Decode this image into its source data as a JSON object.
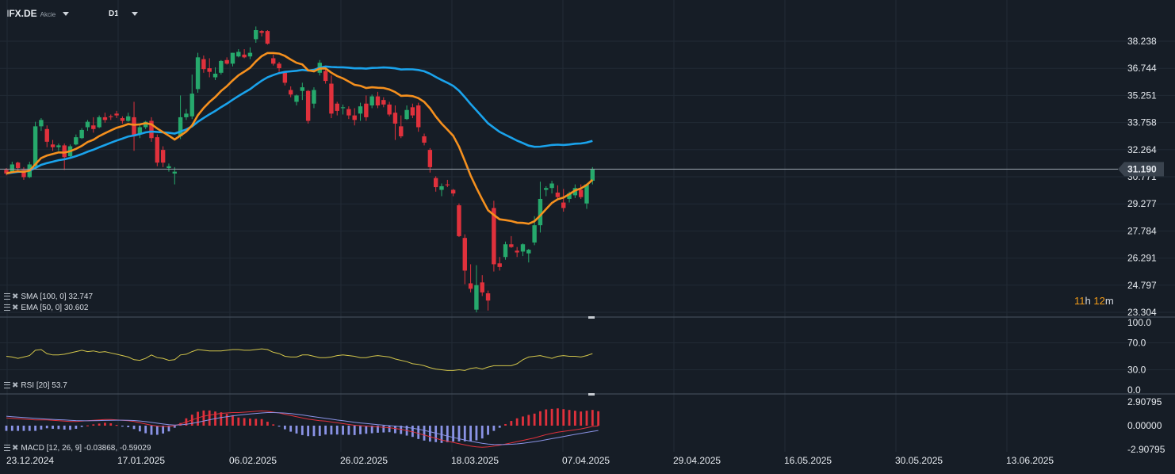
{
  "header": {
    "symbol": "IFX.DE",
    "type": "Akcie",
    "timeframe": "D1"
  },
  "legend": {
    "sma": "SMA [100, 0] 32.747",
    "ema": "EMA [50, 0] 30.602",
    "rsi": "RSI [20] 53.7",
    "macd": "MACD [12, 26, 9] -0.03868, -0.59029"
  },
  "timer": {
    "hours": "11",
    "h": "h",
    "minutes": "12",
    "m": "m"
  },
  "colors": {
    "bg": "#161d26",
    "up": "#26a96c",
    "down": "#e0313c",
    "sma": "#1aa3ec",
    "ema": "#f5901e",
    "rsi": "#d2c54a",
    "grid": "#212a35"
  },
  "chart_data": [
    {
      "type": "candlestick",
      "title": "IFX.DE",
      "ylim": [
        23.304,
        38.238
      ],
      "y_ticks": [
        "38.238",
        "36.744",
        "35.251",
        "33.758",
        "32.264",
        "30.771",
        "29.277",
        "27.784",
        "26.291",
        "24.797",
        "23.304"
      ],
      "x_ticks": [
        "23.12.2024",
        "17.01.2025",
        "06.02.2025",
        "26.02.2025",
        "18.03.2025",
        "07.04.2025",
        "29.04.2025",
        "16.05.2025",
        "30.05.2025",
        "13.06.2025"
      ],
      "last_price": "31.190",
      "series": [
        {
          "name": "SMA [100, 0]",
          "last": 32.747
        },
        {
          "name": "EMA [50, 0]",
          "last": 30.602
        }
      ],
      "candles_ohlc": [
        [
          31.15,
          31.25,
          30.85,
          30.95
        ],
        [
          31.05,
          31.6,
          30.95,
          31.45
        ],
        [
          31.55,
          31.6,
          31.1,
          31.25
        ],
        [
          31.15,
          31.3,
          30.6,
          30.75
        ],
        [
          30.75,
          31.6,
          30.7,
          31.45
        ],
        [
          31.35,
          33.8,
          31.3,
          33.55
        ],
        [
          33.55,
          34.0,
          33.3,
          33.9
        ],
        [
          33.4,
          33.6,
          32.4,
          32.7
        ],
        [
          32.55,
          32.8,
          32.2,
          32.4
        ],
        [
          32.4,
          32.6,
          32.2,
          32.5
        ],
        [
          32.5,
          32.6,
          31.15,
          31.85
        ],
        [
          31.9,
          32.55,
          31.85,
          32.45
        ],
        [
          32.55,
          33.1,
          32.5,
          32.95
        ],
        [
          32.9,
          33.45,
          32.85,
          33.35
        ],
        [
          33.5,
          33.9,
          33.3,
          33.8
        ],
        [
          33.6,
          34.05,
          33.2,
          33.4
        ],
        [
          33.5,
          34.15,
          33.45,
          34.05
        ],
        [
          34.05,
          34.3,
          33.75,
          33.9
        ],
        [
          34.1,
          34.2,
          33.9,
          34.05
        ],
        [
          34.25,
          34.4,
          34.0,
          34.15
        ],
        [
          34.0,
          34.1,
          33.7,
          33.85
        ],
        [
          33.85,
          34.3,
          33.8,
          34.1
        ],
        [
          34.05,
          34.9,
          32.2,
          33.0
        ],
        [
          33.15,
          33.6,
          32.9,
          33.5
        ],
        [
          33.5,
          33.85,
          33.4,
          33.8
        ],
        [
          33.85,
          34.05,
          32.7,
          32.9
        ],
        [
          32.95,
          33.1,
          31.35,
          31.55
        ],
        [
          32.25,
          32.45,
          31.3,
          31.55
        ],
        [
          31.25,
          31.5,
          31.05,
          31.35
        ],
        [
          30.95,
          31.3,
          30.35,
          31.05
        ],
        [
          33.0,
          35.25,
          32.85,
          34.05
        ],
        [
          34.05,
          34.5,
          33.9,
          34.25
        ],
        [
          34.1,
          36.4,
          33.95,
          35.35
        ],
        [
          35.6,
          37.6,
          35.4,
          37.35
        ],
        [
          37.25,
          37.45,
          36.5,
          36.7
        ],
        [
          36.75,
          37.3,
          36.25,
          36.55
        ],
        [
          36.25,
          36.8,
          36.1,
          36.45
        ],
        [
          36.5,
          37.2,
          36.4,
          37.15
        ],
        [
          37.2,
          37.35,
          36.95,
          37.0
        ],
        [
          37.0,
          37.6,
          36.85,
          37.6
        ],
        [
          37.4,
          37.8,
          37.35,
          37.65
        ],
        [
          37.5,
          37.8,
          37.3,
          37.35
        ],
        [
          37.4,
          37.9,
          37.25,
          37.6
        ],
        [
          38.35,
          39.05,
          38.15,
          38.85
        ],
        [
          38.8,
          38.85,
          38.5,
          38.7
        ],
        [
          38.8,
          38.85,
          38.05,
          38.1
        ],
        [
          37.3,
          37.5,
          36.9,
          37.0
        ],
        [
          37.0,
          37.1,
          36.55,
          36.75
        ],
        [
          36.5,
          36.55,
          35.8,
          35.95
        ],
        [
          35.55,
          35.75,
          35.15,
          35.3
        ],
        [
          34.9,
          35.3,
          34.7,
          35.25
        ],
        [
          35.5,
          35.95,
          35.0,
          35.7
        ],
        [
          35.5,
          35.55,
          33.7,
          33.85
        ],
        [
          34.8,
          35.7,
          34.55,
          35.55
        ],
        [
          36.5,
          37.2,
          36.35,
          37.05
        ],
        [
          36.6,
          36.85,
          35.9,
          36.05
        ],
        [
          35.9,
          36.35,
          34.0,
          34.25
        ],
        [
          34.8,
          34.9,
          34.15,
          34.4
        ],
        [
          34.55,
          34.75,
          34.2,
          34.6
        ],
        [
          34.5,
          34.65,
          33.95,
          34.15
        ],
        [
          34.15,
          34.55,
          33.6,
          33.9
        ],
        [
          34.25,
          34.85,
          33.85,
          34.65
        ],
        [
          34.8,
          35.25,
          33.85,
          34.05
        ],
        [
          34.7,
          35.3,
          34.55,
          35.2
        ],
        [
          35.2,
          35.45,
          34.55,
          34.7
        ],
        [
          35.0,
          35.15,
          34.6,
          34.75
        ],
        [
          34.75,
          34.9,
          34.1,
          34.2
        ],
        [
          34.3,
          34.7,
          32.8,
          33.7
        ],
        [
          33.55,
          34.15,
          32.9,
          33.0
        ],
        [
          33.95,
          34.7,
          33.9,
          34.45
        ],
        [
          34.6,
          34.8,
          34.0,
          34.15
        ],
        [
          34.7,
          34.85,
          33.25,
          33.5
        ],
        [
          33.0,
          33.15,
          32.5,
          32.65
        ],
        [
          32.25,
          32.35,
          31.0,
          31.3
        ],
        [
          30.7,
          30.8,
          29.95,
          30.2
        ],
        [
          30.05,
          30.4,
          29.7,
          30.25
        ],
        [
          30.35,
          30.6,
          30.2,
          30.3
        ],
        [
          30.05,
          30.1,
          29.7,
          29.85
        ],
        [
          29.2,
          29.3,
          27.45,
          27.5
        ],
        [
          27.4,
          27.6,
          24.85,
          25.6
        ],
        [
          24.9,
          25.95,
          24.4,
          24.6
        ],
        [
          23.45,
          25.9,
          23.3,
          24.8
        ],
        [
          24.95,
          25.35,
          24.2,
          24.4
        ],
        [
          24.35,
          24.5,
          23.4,
          23.95
        ],
        [
          29.05,
          29.45,
          25.55,
          25.95
        ],
        [
          26.0,
          26.35,
          25.6,
          25.8
        ],
        [
          26.35,
          27.2,
          26.2,
          27.05
        ],
        [
          27.05,
          27.5,
          26.85,
          26.9
        ],
        [
          26.7,
          26.9,
          26.35,
          26.6
        ],
        [
          26.65,
          27.1,
          26.4,
          27.05
        ],
        [
          26.55,
          26.8,
          26.05,
          26.75
        ],
        [
          27.15,
          28.6,
          27.0,
          28.1
        ],
        [
          28.1,
          30.5,
          27.7,
          29.55
        ],
        [
          30.05,
          30.25,
          29.7,
          30.15
        ],
        [
          30.15,
          30.55,
          29.85,
          30.4
        ],
        [
          29.9,
          30.3,
          29.55,
          29.65
        ],
        [
          29.35,
          30.1,
          28.85,
          29.05
        ],
        [
          29.55,
          29.95,
          29.35,
          29.85
        ],
        [
          29.75,
          30.35,
          29.6,
          30.15
        ],
        [
          30.05,
          30.35,
          29.55,
          29.65
        ],
        [
          29.3,
          30.4,
          29.0,
          30.35
        ],
        [
          30.55,
          31.3,
          30.35,
          31.19
        ]
      ]
    },
    {
      "type": "line",
      "title": "RSI [20]",
      "ylim": [
        0,
        100
      ],
      "y_ticks": [
        "100.0",
        "70.0",
        "30.0",
        "0.0"
      ],
      "last": 53.7,
      "series": [
        {
          "name": "RSI [20]",
          "values": [
            50,
            49,
            47,
            49,
            51,
            59,
            60,
            54,
            52,
            52,
            53,
            55,
            57,
            59,
            57,
            58,
            56,
            57,
            55,
            53,
            51,
            49,
            45,
            44,
            47,
            52,
            48,
            47,
            44,
            45,
            52,
            53,
            57,
            60,
            59,
            58,
            58,
            58,
            59,
            60,
            60,
            59,
            59,
            60,
            61,
            60,
            56,
            54,
            50,
            49,
            49,
            52,
            52,
            50,
            48,
            48,
            49,
            51,
            52,
            51,
            50,
            48,
            48,
            50,
            51,
            50,
            49,
            46,
            44,
            42,
            39,
            38,
            36,
            33,
            31,
            30,
            29,
            29,
            30,
            29,
            32,
            33,
            31,
            34,
            36,
            36,
            36,
            36,
            39,
            45,
            49,
            50,
            51,
            49,
            47,
            50,
            51,
            50,
            50,
            49,
            51,
            54
          ]
        }
      ]
    },
    {
      "type": "bar",
      "title": "MACD [12, 26, 9]",
      "ylim": [
        -2.90795,
        2.90795
      ],
      "y_ticks": [
        "2.90795",
        "0.00000",
        "-2.90795"
      ],
      "values_last": [
        -0.03868,
        -0.59029
      ],
      "series": [
        {
          "name": "MACD",
          "values": [
            0.95,
            0.9,
            0.85,
            0.8,
            0.75,
            0.7,
            0.7,
            0.7,
            0.65,
            0.6,
            0.55,
            0.5,
            0.5,
            0.55,
            0.6,
            0.65,
            0.7,
            0.75,
            0.75,
            0.7,
            0.65,
            0.6,
            0.5,
            0.35,
            0.2,
            0.05,
            -0.05,
            -0.1,
            -0.1,
            0.0,
            0.2,
            0.45,
            0.7,
            0.95,
            1.15,
            1.3,
            1.4,
            1.5,
            1.55,
            1.6,
            1.6,
            1.65,
            1.7,
            1.75,
            1.8,
            1.75,
            1.65,
            1.55,
            1.4,
            1.25,
            1.1,
            0.95,
            0.8,
            0.7,
            0.6,
            0.55,
            0.45,
            0.35,
            0.25,
            0.15,
            0.05,
            0.0,
            -0.05,
            -0.1,
            -0.15,
            -0.2,
            -0.25,
            -0.35,
            -0.45,
            -0.6,
            -0.75,
            -0.95,
            -1.15,
            -1.35,
            -1.55,
            -1.75,
            -1.9,
            -2.05,
            -2.2,
            -2.35,
            -2.5,
            -2.6,
            -2.65,
            -2.6,
            -2.5,
            -2.4,
            -2.25,
            -2.1,
            -1.95,
            -1.8,
            -1.65,
            -1.5,
            -1.3,
            -1.1,
            -0.95,
            -0.8,
            -0.7,
            -0.6,
            -0.5,
            -0.4,
            -0.25,
            -0.1,
            -0.03868
          ]
        },
        {
          "name": "Signal",
          "values": [
            1.15,
            1.1,
            1.05,
            1.0,
            0.95,
            0.9,
            0.85,
            0.8,
            0.77,
            0.73,
            0.7,
            0.66,
            0.62,
            0.6,
            0.59,
            0.6,
            0.62,
            0.64,
            0.66,
            0.67,
            0.67,
            0.66,
            0.63,
            0.57,
            0.49,
            0.4,
            0.3,
            0.2,
            0.12,
            0.08,
            0.1,
            0.17,
            0.28,
            0.42,
            0.57,
            0.72,
            0.86,
            0.99,
            1.1,
            1.2,
            1.29,
            1.36,
            1.43,
            1.49,
            1.55,
            1.6,
            1.6,
            1.58,
            1.54,
            1.48,
            1.4,
            1.31,
            1.2,
            1.1,
            0.99,
            0.89,
            0.79,
            0.69,
            0.6,
            0.5,
            0.41,
            0.33,
            0.26,
            0.19,
            0.12,
            0.06,
            0.0,
            -0.06,
            -0.13,
            -0.22,
            -0.32,
            -0.44,
            -0.58,
            -0.74,
            -0.92,
            -1.09,
            -1.27,
            -1.44,
            -1.6,
            -1.75,
            -1.9,
            -2.04,
            -2.16,
            -2.25,
            -2.3,
            -2.32,
            -2.31,
            -2.28,
            -2.23,
            -2.15,
            -2.06,
            -1.96,
            -1.85,
            -1.72,
            -1.59,
            -1.46,
            -1.33,
            -1.2,
            -1.07,
            -0.94,
            -0.82,
            -0.7,
            -0.59029
          ]
        }
      ]
    }
  ]
}
